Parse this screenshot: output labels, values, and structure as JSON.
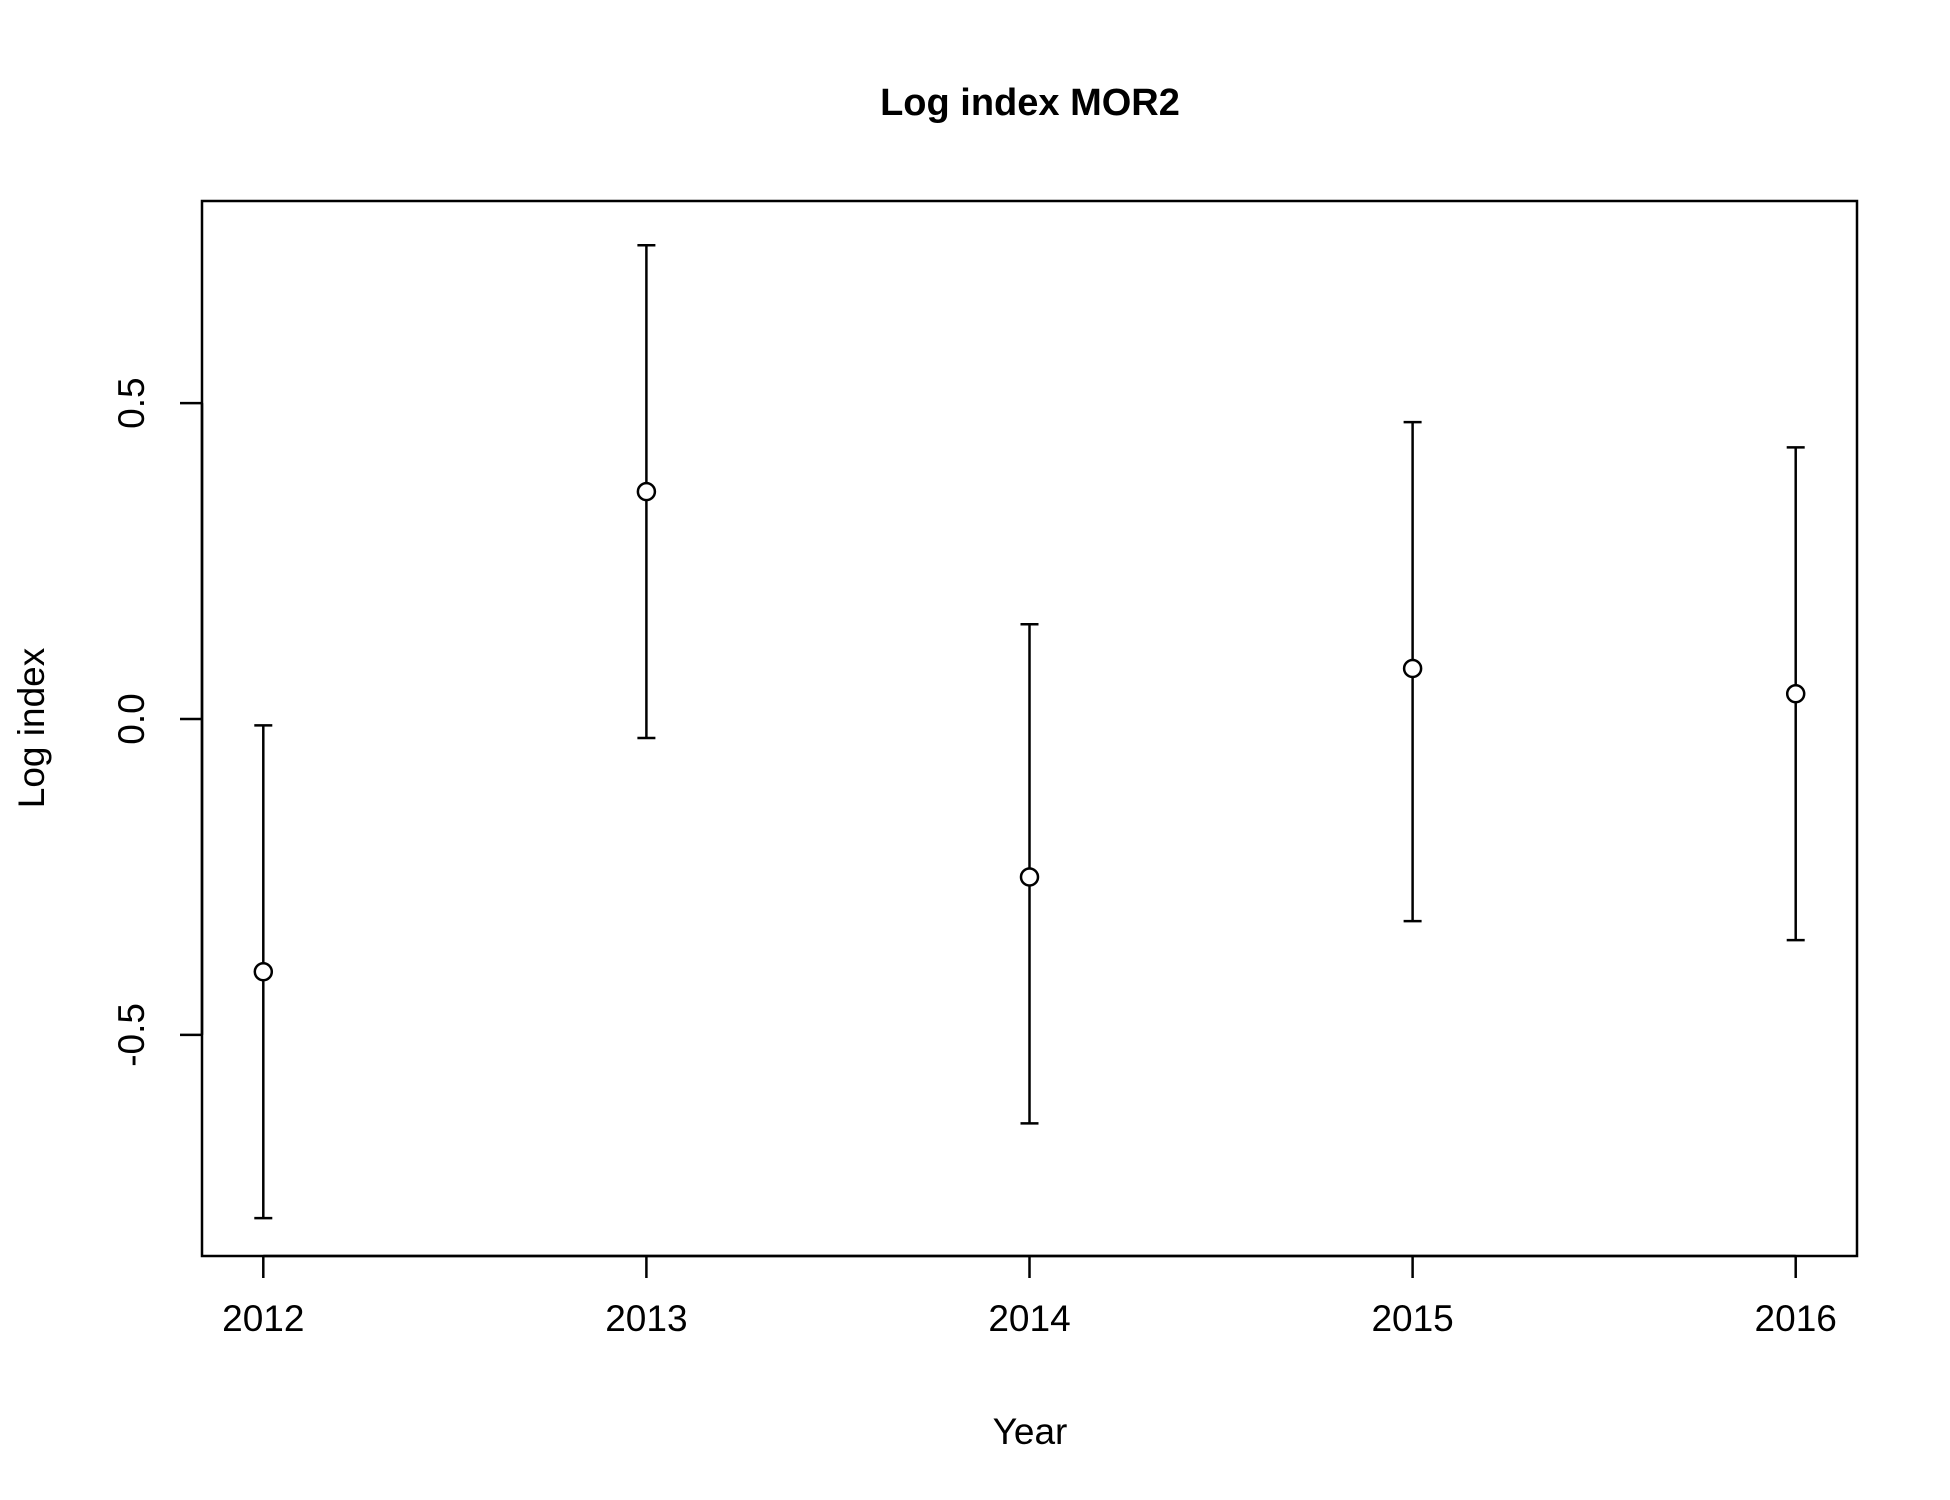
{
  "chart_data": {
    "type": "scatter",
    "title": "Log index MOR2",
    "xlabel": "Year",
    "ylabel": "Log index",
    "x": [
      2012,
      2013,
      2014,
      2015,
      2016
    ],
    "x_tick_labels": [
      "2012",
      "2013",
      "2014",
      "2015",
      "2016"
    ],
    "y_ticks": [
      -0.5,
      0.0,
      0.5
    ],
    "y_tick_labels": [
      "-0.5",
      "0.0",
      "0.5"
    ],
    "xlim": [
      2011.84,
      2016.16
    ],
    "ylim": [
      -0.85,
      0.82
    ],
    "series": [
      {
        "values": [
          -0.4,
          0.36,
          -0.25,
          0.08,
          0.04
        ],
        "lower": [
          -0.79,
          -0.03,
          -0.64,
          -0.32,
          -0.35
        ],
        "upper": [
          -0.01,
          0.75,
          0.15,
          0.47,
          0.43
        ]
      }
    ],
    "grid": false,
    "legend": "none",
    "colors": {
      "ink": "#000000",
      "marker_fill": "#ffffff"
    }
  }
}
